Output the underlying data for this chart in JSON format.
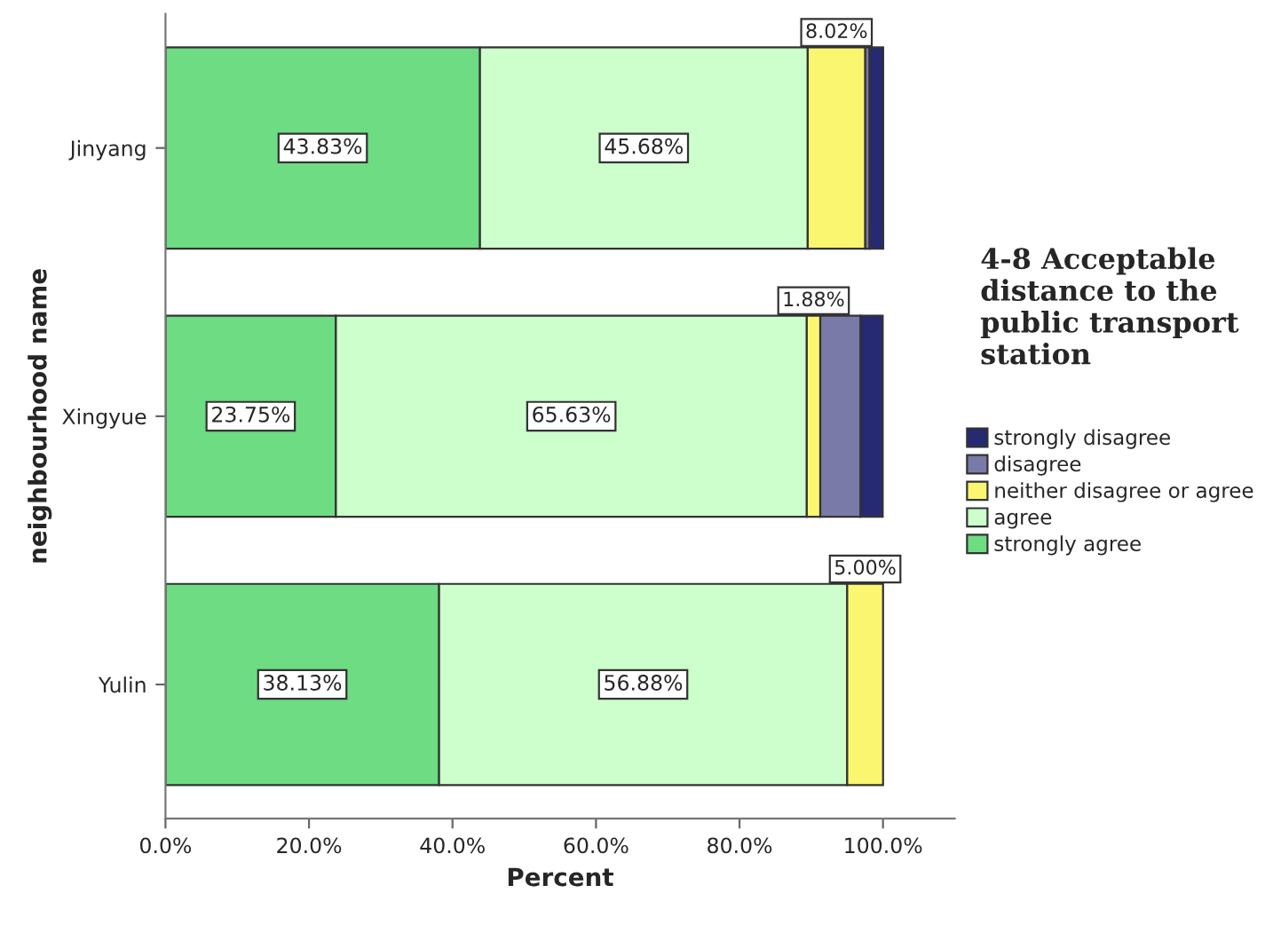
{
  "chart_data": {
    "type": "bar",
    "orientation": "horizontal",
    "stacked": true,
    "ylabel": "neighbourhood name",
    "xlabel": "Percent",
    "legend_title": "4-8 Acceptable distance to the public transport station",
    "legend": "right",
    "grid": false,
    "categories": [
      "Jinyang",
      "Xingyue",
      "Yulin"
    ],
    "xlim": [
      0,
      110
    ],
    "xticks": [
      {
        "value": 0,
        "label": "0.0%"
      },
      {
        "value": 20,
        "label": "20.0%"
      },
      {
        "value": 40,
        "label": "40.0%"
      },
      {
        "value": 60,
        "label": "60.0%"
      },
      {
        "value": 80,
        "label": "80.0%"
      },
      {
        "value": 100,
        "label": "100.0%"
      }
    ],
    "series": [
      {
        "name": "strongly agree",
        "color": "#6ddc82",
        "values": [
          43.83,
          23.75,
          38.13
        ],
        "value_labels": [
          "43.83%",
          "23.75%",
          "38.13%"
        ]
      },
      {
        "name": "agree",
        "color": "#ccffcc",
        "values": [
          45.68,
          65.63,
          56.88
        ],
        "value_labels": [
          "45.68%",
          "65.63%",
          "56.88%"
        ]
      },
      {
        "name": "neither disagree or agree",
        "color": "#fbf670",
        "values": [
          8.02,
          1.88,
          5.0
        ],
        "value_labels": [
          "8.02%",
          "1.88%",
          "5.00%"
        ]
      },
      {
        "name": "disagree",
        "color": "#7a7aa8",
        "values": [
          0.6,
          5.6,
          null
        ],
        "value_labels": [
          null,
          null,
          null
        ]
      },
      {
        "name": "strongly disagree",
        "color": "#262a72",
        "values": [
          1.9,
          3.1,
          null
        ],
        "value_labels": [
          null,
          null,
          null
        ]
      }
    ]
  }
}
